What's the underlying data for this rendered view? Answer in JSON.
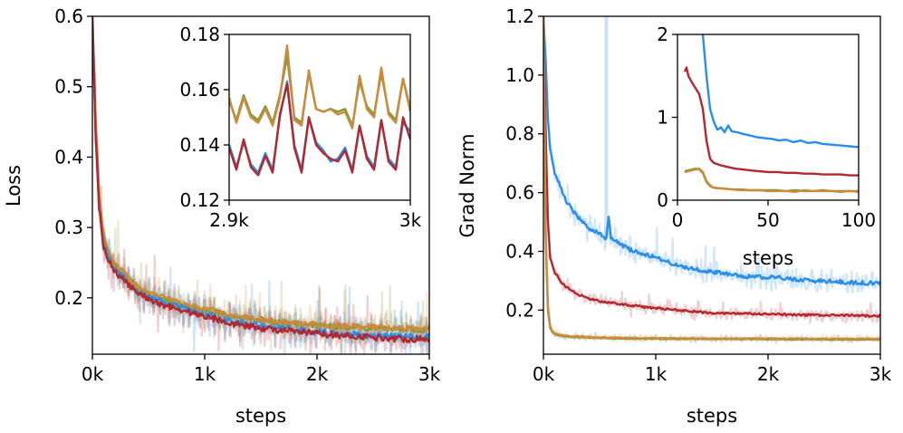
{
  "colors": {
    "series_blue": "#2a8ee8",
    "series_red": "#b2282e",
    "series_orange": "#cc8a3c",
    "series_green": "#7a9c3a"
  },
  "chart_data": [
    {
      "id": "loss-main",
      "type": "line",
      "title": "",
      "xlabel": "steps",
      "ylabel": "Loss",
      "xlim": [
        0,
        3000
      ],
      "ylim": [
        0.12,
        0.6
      ],
      "xticks": [
        0,
        1000,
        2000,
        3000
      ],
      "xtick_labels": [
        "0k",
        "1k",
        "2k",
        "3k"
      ],
      "yticks": [
        0.2,
        0.3,
        0.4,
        0.5,
        0.6
      ],
      "ytick_labels": [
        "0.2",
        "0.3",
        "0.4",
        "0.5",
        "0.6"
      ],
      "smoothing": "raw curves shown faded behind smoothed curves",
      "series": [
        {
          "name": "green",
          "color": "#7a9c3a",
          "noise": 0.018,
          "x": [
            0,
            30,
            60,
            100,
            150,
            200,
            300,
            400,
            500,
            700,
            900,
            1100,
            1300,
            1500,
            1800,
            2100,
            2400,
            2700,
            3000
          ],
          "y": [
            0.6,
            0.44,
            0.34,
            0.28,
            0.26,
            0.245,
            0.23,
            0.215,
            0.205,
            0.195,
            0.185,
            0.18,
            0.172,
            0.168,
            0.163,
            0.16,
            0.158,
            0.156,
            0.155
          ]
        },
        {
          "name": "orange",
          "color": "#cc8a3c",
          "noise": 0.018,
          "x": [
            0,
            30,
            60,
            100,
            150,
            200,
            300,
            400,
            500,
            700,
            900,
            1100,
            1300,
            1500,
            1800,
            2100,
            2400,
            2700,
            3000
          ],
          "y": [
            0.6,
            0.45,
            0.35,
            0.29,
            0.265,
            0.25,
            0.232,
            0.217,
            0.207,
            0.197,
            0.187,
            0.181,
            0.173,
            0.169,
            0.164,
            0.161,
            0.159,
            0.157,
            0.156
          ]
        },
        {
          "name": "blue",
          "color": "#2a8ee8",
          "noise": 0.02,
          "x": [
            0,
            30,
            60,
            100,
            150,
            200,
            300,
            400,
            500,
            700,
            900,
            1100,
            1300,
            1500,
            1800,
            2100,
            2400,
            2700,
            3000
          ],
          "y": [
            0.6,
            0.43,
            0.33,
            0.275,
            0.255,
            0.24,
            0.225,
            0.21,
            0.2,
            0.19,
            0.18,
            0.172,
            0.165,
            0.16,
            0.155,
            0.15,
            0.147,
            0.145,
            0.144
          ]
        },
        {
          "name": "red",
          "color": "#b2282e",
          "noise": 0.02,
          "x": [
            0,
            30,
            60,
            100,
            150,
            200,
            300,
            400,
            500,
            700,
            900,
            1100,
            1300,
            1500,
            1800,
            2100,
            2400,
            2700,
            3000
          ],
          "y": [
            0.6,
            0.43,
            0.33,
            0.272,
            0.252,
            0.237,
            0.222,
            0.207,
            0.197,
            0.187,
            0.178,
            0.17,
            0.162,
            0.157,
            0.152,
            0.148,
            0.145,
            0.142,
            0.141
          ]
        }
      ]
    },
    {
      "id": "loss-inset",
      "type": "line",
      "xlabel": "",
      "ylabel": "",
      "xlim": [
        2900,
        3000
      ],
      "ylim": [
        0.12,
        0.18
      ],
      "xticks": [
        2900,
        3000
      ],
      "xtick_labels": [
        "2.9k",
        "3k"
      ],
      "yticks": [
        0.12,
        0.14,
        0.16,
        0.18
      ],
      "ytick_labels": [
        "0.12",
        "0.14",
        "0.16",
        "0.18"
      ],
      "series": [
        {
          "name": "green",
          "color": "#7a9c3a",
          "x": [
            2900,
            2904,
            2908,
            2912,
            2916,
            2920,
            2924,
            2928,
            2932,
            2936,
            2940,
            2944,
            2948,
            2952,
            2956,
            2960,
            2964,
            2968,
            2972,
            2976,
            2980,
            2984,
            2988,
            2992,
            2996,
            3000
          ],
          "y": [
            0.156,
            0.149,
            0.158,
            0.151,
            0.149,
            0.154,
            0.148,
            0.158,
            0.172,
            0.15,
            0.148,
            0.166,
            0.153,
            0.152,
            0.153,
            0.152,
            0.153,
            0.147,
            0.163,
            0.154,
            0.151,
            0.166,
            0.152,
            0.149,
            0.164,
            0.153
          ]
        },
        {
          "name": "orange",
          "color": "#cc8a3c",
          "x": [
            2900,
            2904,
            2908,
            2912,
            2916,
            2920,
            2924,
            2928,
            2932,
            2936,
            2940,
            2944,
            2948,
            2952,
            2956,
            2960,
            2964,
            2968,
            2972,
            2976,
            2980,
            2984,
            2988,
            2992,
            2996,
            3000
          ],
          "y": [
            0.157,
            0.148,
            0.157,
            0.15,
            0.148,
            0.153,
            0.147,
            0.157,
            0.176,
            0.149,
            0.147,
            0.167,
            0.153,
            0.152,
            0.153,
            0.151,
            0.152,
            0.146,
            0.165,
            0.153,
            0.15,
            0.168,
            0.151,
            0.148,
            0.164,
            0.152
          ]
        },
        {
          "name": "blue",
          "color": "#2a8ee8",
          "x": [
            2900,
            2904,
            2908,
            2912,
            2916,
            2920,
            2924,
            2928,
            2932,
            2936,
            2940,
            2944,
            2948,
            2952,
            2956,
            2960,
            2964,
            2968,
            2972,
            2976,
            2980,
            2984,
            2988,
            2992,
            2996,
            3000
          ],
          "y": [
            0.14,
            0.132,
            0.141,
            0.133,
            0.13,
            0.137,
            0.131,
            0.15,
            0.163,
            0.14,
            0.131,
            0.15,
            0.141,
            0.138,
            0.134,
            0.135,
            0.139,
            0.131,
            0.147,
            0.136,
            0.132,
            0.149,
            0.135,
            0.132,
            0.148,
            0.145
          ]
        },
        {
          "name": "red",
          "color": "#b2282e",
          "x": [
            2900,
            2904,
            2908,
            2912,
            2916,
            2920,
            2924,
            2928,
            2932,
            2936,
            2940,
            2944,
            2948,
            2952,
            2956,
            2960,
            2964,
            2968,
            2972,
            2976,
            2980,
            2984,
            2988,
            2992,
            2996,
            3000
          ],
          "y": [
            0.139,
            0.131,
            0.142,
            0.132,
            0.129,
            0.136,
            0.13,
            0.151,
            0.162,
            0.139,
            0.13,
            0.15,
            0.14,
            0.137,
            0.135,
            0.134,
            0.138,
            0.13,
            0.147,
            0.135,
            0.131,
            0.149,
            0.134,
            0.131,
            0.15,
            0.142
          ]
        }
      ]
    },
    {
      "id": "grad-main",
      "type": "line",
      "title": "",
      "xlabel": "steps",
      "ylabel": "Grad Norm",
      "xlim": [
        0,
        3000
      ],
      "ylim": [
        0.05,
        1.2
      ],
      "xticks": [
        0,
        1000,
        2000,
        3000
      ],
      "xtick_labels": [
        "0k",
        "1k",
        "2k",
        "3k"
      ],
      "yticks": [
        0.2,
        0.4,
        0.6,
        0.8,
        1.0,
        1.2
      ],
      "ytick_labels": [
        "0.2",
        "0.4",
        "0.6",
        "0.8",
        "1.0",
        "1.2"
      ],
      "smoothing": "raw curves shown faded behind smoothed curves",
      "series": [
        {
          "name": "blue",
          "color": "#2a8ee8",
          "noise": 0.03,
          "x": [
            0,
            20,
            40,
            60,
            100,
            150,
            200,
            300,
            400,
            500,
            560,
            580,
            600,
            700,
            800,
            1000,
            1200,
            1500,
            1800,
            2100,
            2400,
            2700,
            3000
          ],
          "y": [
            1.2,
            1.05,
            0.85,
            0.75,
            0.67,
            0.62,
            0.57,
            0.52,
            0.48,
            0.46,
            0.44,
            0.52,
            0.45,
            0.42,
            0.4,
            0.38,
            0.35,
            0.33,
            0.315,
            0.31,
            0.3,
            0.295,
            0.29
          ]
        },
        {
          "name": "red",
          "color": "#b2282e",
          "noise": 0.015,
          "x": [
            0,
            20,
            40,
            60,
            100,
            150,
            200,
            300,
            400,
            500,
            700,
            900,
            1200,
            1500,
            1800,
            2100,
            2400,
            2700,
            3000
          ],
          "y": [
            1.2,
            0.8,
            0.5,
            0.38,
            0.33,
            0.3,
            0.28,
            0.255,
            0.24,
            0.23,
            0.22,
            0.21,
            0.2,
            0.19,
            0.188,
            0.185,
            0.183,
            0.182,
            0.18
          ]
        },
        {
          "name": "green",
          "color": "#7a9c3a",
          "noise": 0.006,
          "x": [
            0,
            20,
            40,
            60,
            80,
            100,
            150,
            200,
            300,
            500,
            800,
            1200,
            1600,
            2000,
            2500,
            3000
          ],
          "y": [
            1.2,
            0.45,
            0.2,
            0.14,
            0.125,
            0.118,
            0.113,
            0.11,
            0.108,
            0.105,
            0.103,
            0.102,
            0.102,
            0.101,
            0.1,
            0.1
          ]
        },
        {
          "name": "orange",
          "color": "#cc8a3c",
          "noise": 0.006,
          "x": [
            0,
            20,
            40,
            60,
            80,
            100,
            150,
            200,
            300,
            500,
            800,
            1200,
            1600,
            2000,
            2500,
            3000
          ],
          "y": [
            1.2,
            0.46,
            0.21,
            0.145,
            0.128,
            0.12,
            0.115,
            0.112,
            0.11,
            0.107,
            0.105,
            0.104,
            0.103,
            0.103,
            0.102,
            0.102
          ]
        }
      ]
    },
    {
      "id": "grad-inset",
      "type": "line",
      "xlabel": "steps",
      "ylabel": "",
      "xlim": [
        0,
        100
      ],
      "ylim": [
        0,
        2
      ],
      "xticks": [
        0,
        50,
        100
      ],
      "xtick_labels": [
        "0",
        "50",
        "100"
      ],
      "yticks": [
        0,
        1,
        2
      ],
      "ytick_labels": [
        "0",
        "1",
        "2"
      ],
      "series": [
        {
          "name": "blue",
          "color": "#2a8ee8",
          "x": [
            14,
            16,
            18,
            20,
            22,
            24,
            26,
            28,
            30,
            33,
            36,
            40,
            44,
            48,
            52,
            56,
            60,
            64,
            68,
            72,
            76,
            80,
            85,
            90,
            95,
            100
          ],
          "y": [
            2.0,
            1.5,
            1.1,
            0.95,
            0.85,
            0.88,
            0.82,
            0.9,
            0.83,
            0.82,
            0.8,
            0.78,
            0.76,
            0.75,
            0.74,
            0.72,
            0.73,
            0.7,
            0.72,
            0.69,
            0.7,
            0.68,
            0.67,
            0.66,
            0.65,
            0.64
          ]
        },
        {
          "name": "red",
          "color": "#b2282e",
          "x": [
            4,
            5,
            6,
            8,
            10,
            12,
            14,
            16,
            18,
            20,
            24,
            28,
            32,
            36,
            40,
            45,
            50,
            55,
            60,
            65,
            70,
            75,
            80,
            85,
            90,
            95,
            100
          ],
          "y": [
            1.55,
            1.6,
            1.5,
            1.42,
            1.35,
            1.28,
            1.1,
            0.72,
            0.5,
            0.45,
            0.42,
            0.4,
            0.38,
            0.37,
            0.36,
            0.35,
            0.34,
            0.34,
            0.33,
            0.33,
            0.32,
            0.32,
            0.31,
            0.31,
            0.31,
            0.3,
            0.3
          ]
        },
        {
          "name": "green",
          "color": "#7a9c3a",
          "x": [
            4,
            6,
            8,
            10,
            12,
            14,
            16,
            18,
            20,
            25,
            30,
            35,
            40,
            45,
            50,
            55,
            60,
            65,
            70,
            75,
            80,
            85,
            90,
            95,
            100
          ],
          "y": [
            0.35,
            0.36,
            0.37,
            0.38,
            0.37,
            0.33,
            0.22,
            0.17,
            0.15,
            0.14,
            0.13,
            0.13,
            0.12,
            0.12,
            0.12,
            0.12,
            0.11,
            0.12,
            0.11,
            0.11,
            0.12,
            0.11,
            0.11,
            0.11,
            0.11
          ]
        },
        {
          "name": "orange",
          "color": "#cc8a3c",
          "x": [
            4,
            6,
            8,
            10,
            12,
            14,
            16,
            18,
            20,
            25,
            30,
            35,
            40,
            45,
            50,
            55,
            60,
            65,
            70,
            75,
            80,
            85,
            90,
            95,
            100
          ],
          "y": [
            0.34,
            0.35,
            0.36,
            0.37,
            0.38,
            0.34,
            0.23,
            0.18,
            0.15,
            0.14,
            0.13,
            0.12,
            0.12,
            0.12,
            0.11,
            0.11,
            0.11,
            0.1,
            0.12,
            0.11,
            0.11,
            0.11,
            0.1,
            0.11,
            0.1
          ]
        }
      ]
    }
  ]
}
